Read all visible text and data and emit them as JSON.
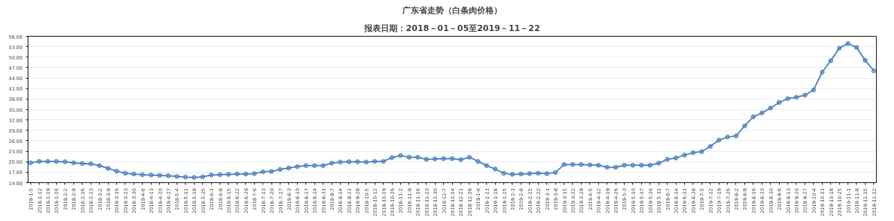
{
  "chart_data": {
    "type": "line",
    "title": "广东省走势（白条肉价格）",
    "subtitle": "报表日期：2018－01－05至2019－11－22",
    "categories": [
      "2018-1-5",
      "2018-1-12",
      "2018-1-19",
      "2018-1-26",
      "2018-2-2",
      "2018-2-9",
      "2018-2-16",
      "2018-2-23",
      "2018-3-2",
      "2018-3-9",
      "2018-3-16",
      "2018-3-23",
      "2018-3-30",
      "2018-4-6",
      "2018-4-13",
      "2018-4-20",
      "2018-4-27",
      "2018-5-4",
      "2018-5-11",
      "2018-5-18",
      "2018-5-25",
      "2018-6-1",
      "2018-6-8",
      "2018-6-15",
      "2018-6-22",
      "2018-6-29",
      "2018-7-6",
      "2018-7-13",
      "2018-7-20",
      "2018-7-27",
      "2018-8-3",
      "2018-8-10",
      "2018-8-17",
      "2018-8-24",
      "2018-8-31",
      "2018-9-7",
      "2018-9-14",
      "2018-9-21",
      "2018-9-28",
      "2018-10-5",
      "2018-10-12",
      "2018-10-19",
      "2018-10-26",
      "2018-11-2",
      "2018-11-9",
      "2018-11-16",
      "2018-11-23",
      "2018-11-30",
      "2018-12-7",
      "2018-12-14",
      "2018-12-21",
      "2018-12-28",
      "2019-1-4",
      "2019-1-11",
      "2019-1-18",
      "2019-1-25",
      "2019-2-1",
      "2019-2-8",
      "2019-2-15",
      "2019-2-22",
      "2019-3-1",
      "2019-3-8",
      "2019-3-15",
      "2019-3-22",
      "2019-3-29",
      "2019-4-5",
      "2019-4-12",
      "2019-4-19",
      "2019-4-26",
      "2019-5-3",
      "2019-5-10",
      "2019-5-17",
      "2019-5-24",
      "2019-5-31",
      "2019-6-7",
      "2019-6-14",
      "2019-6-21",
      "2019-6-28",
      "2019-7-5",
      "2019-7-12",
      "2019-7-19",
      "2019-7-26",
      "2019-8-2",
      "2019-8-9",
      "2019-8-16",
      "2019-8-23",
      "2019-8-30",
      "2019-9-6",
      "2019-9-13",
      "2019-9-20",
      "2019-9-27",
      "2019-10-4",
      "2019-10-11",
      "2019-10-18",
      "2019-10-25",
      "2019-11-1",
      "2019-11-8",
      "2019-11-15",
      "2019-11-22"
    ],
    "series": [
      {
        "color": "#4f81bd",
        "values": [
          19.7,
          20.1,
          20.1,
          20.1,
          20.0,
          19.7,
          19.5,
          19.4,
          18.9,
          18.1,
          17.3,
          16.7,
          16.5,
          16.3,
          16.2,
          16.1,
          16.0,
          15.8,
          15.6,
          15.5,
          15.7,
          16.2,
          16.3,
          16.4,
          16.5,
          16.5,
          16.6,
          17.1,
          17.2,
          17.8,
          18.2,
          18.6,
          18.9,
          18.9,
          18.9,
          19.6,
          19.9,
          20.0,
          20.0,
          19.9,
          20.1,
          20.1,
          21.2,
          21.8,
          21.3,
          21.3,
          20.7,
          20.8,
          20.9,
          20.9,
          20.6,
          21.3,
          20.1,
          18.9,
          17.9,
          16.7,
          16.4,
          16.5,
          16.6,
          16.7,
          16.6,
          16.9,
          19.2,
          19.2,
          19.2,
          19.1,
          19.0,
          18.4,
          18.4,
          19.0,
          19.0,
          19.0,
          19.0,
          19.6,
          20.7,
          21.1,
          21.9,
          22.6,
          22.9,
          24.4,
          26.2,
          27.1,
          27.4,
          30.3,
          32.9,
          34.0,
          35.4,
          37.0,
          38.1,
          38.5,
          39.1,
          40.6,
          45.7,
          49.0,
          52.6,
          53.9,
          52.8,
          49.1,
          46.1
        ]
      }
    ],
    "ylim": [
      14,
      56
    ],
    "yticks": [
      {
        "value": 14,
        "label": "14.00"
      },
      {
        "value": 17,
        "label": "17.00"
      },
      {
        "value": 20,
        "label": "20.00"
      },
      {
        "value": 23,
        "label": "23.00"
      },
      {
        "value": 26,
        "label": "26.00"
      },
      {
        "value": 29,
        "label": "29.00"
      },
      {
        "value": 32,
        "label": "32.00"
      },
      {
        "value": 35,
        "label": "35.00"
      },
      {
        "value": 38,
        "label": "38.00"
      },
      {
        "value": 41,
        "label": "41.00"
      },
      {
        "value": 44,
        "label": "44.00"
      },
      {
        "value": 47,
        "label": "47.00"
      },
      {
        "value": 50,
        "label": "50.00"
      },
      {
        "value": 53,
        "label": "53.00"
      },
      {
        "value": 56,
        "label": "56.00"
      }
    ],
    "grid": "y",
    "marker": "circle",
    "line_style": "solid"
  }
}
